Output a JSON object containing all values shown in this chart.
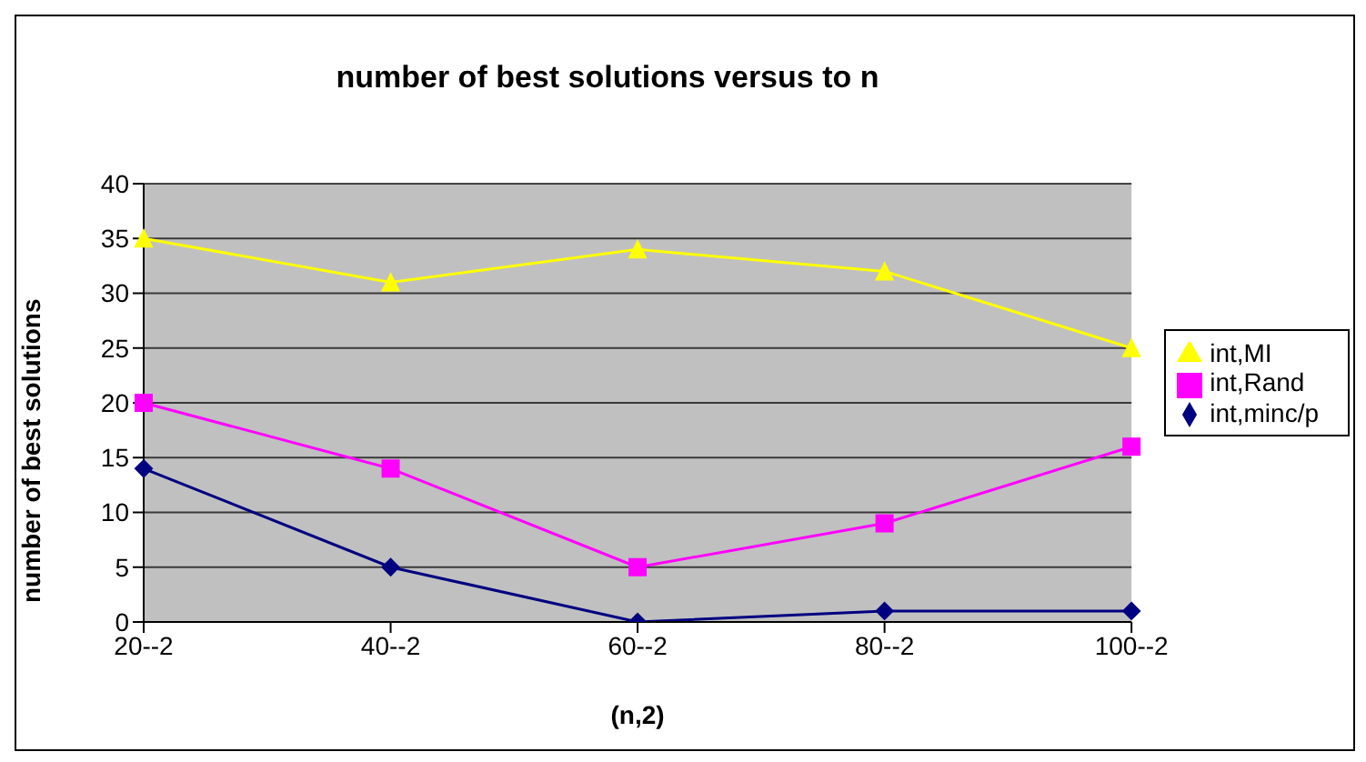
{
  "chart_data": {
    "type": "line",
    "title": "number of best solutions versus to n",
    "xlabel": "(n,2)",
    "ylabel": "number of best solutions",
    "categories": [
      "20--2",
      "40--2",
      "60--2",
      "80--2",
      "100--2"
    ],
    "series": [
      {
        "name": "int,minc/p",
        "color": "#000080",
        "marker": "diamond",
        "values": [
          14,
          5,
          0,
          1,
          1
        ]
      },
      {
        "name": "int,Rand",
        "color": "#ff00ff",
        "marker": "square",
        "values": [
          20,
          14,
          5,
          9,
          16
        ]
      },
      {
        "name": "int,MI",
        "color": "#ffff00",
        "marker": "triangle",
        "values": [
          35,
          31,
          34,
          32,
          25
        ]
      }
    ],
    "ylim": [
      0,
      40
    ],
    "yticks": [
      0,
      5,
      10,
      15,
      20,
      25,
      30,
      35,
      40
    ],
    "grid": "y",
    "legend": "right"
  }
}
